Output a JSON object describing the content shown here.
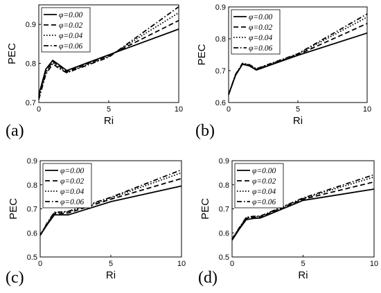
{
  "figure": {
    "panels": [
      "(a)",
      "(b)",
      "(c)",
      "(d)"
    ]
  },
  "chart_data": [
    {
      "type": "line",
      "panel_label": "(a)",
      "xlabel": "Ri",
      "ylabel": "PEC",
      "xlim": [
        0,
        10
      ],
      "ylim": [
        0.7,
        0.95
      ],
      "xticks": [
        0,
        5,
        10
      ],
      "yticks": [
        0.7,
        0.8,
        0.9
      ],
      "legend_position": "top-left",
      "series": [
        {
          "name": "φ=0.00",
          "style": "solid",
          "x": [
            0,
            0.5,
            1,
            1.5,
            2,
            5,
            10
          ],
          "y": [
            0.72,
            0.785,
            0.808,
            0.795,
            0.782,
            0.822,
            0.888
          ]
        },
        {
          "name": "φ=0.02",
          "style": "dashed",
          "x": [
            0,
            0.5,
            1,
            1.5,
            2,
            5,
            10
          ],
          "y": [
            0.715,
            0.78,
            0.805,
            0.792,
            0.779,
            0.82,
            0.91
          ]
        },
        {
          "name": "φ=0.04",
          "style": "dotted",
          "x": [
            0,
            0.5,
            1,
            1.5,
            2,
            5,
            10
          ],
          "y": [
            0.712,
            0.776,
            0.802,
            0.789,
            0.777,
            0.818,
            0.93
          ]
        },
        {
          "name": "φ=0.06",
          "style": "dashdot",
          "x": [
            0,
            0.5,
            1,
            1.5,
            2,
            5,
            10
          ],
          "y": [
            0.708,
            0.772,
            0.799,
            0.786,
            0.776,
            0.816,
            0.945
          ]
        }
      ]
    },
    {
      "type": "line",
      "panel_label": "(b)",
      "xlabel": "Ri",
      "ylabel": "PEC",
      "xlim": [
        0,
        10
      ],
      "ylim": [
        0.6,
        0.9
      ],
      "xticks": [
        0,
        5,
        10
      ],
      "yticks": [
        0.6,
        0.7,
        0.8,
        0.9
      ],
      "legend_position": "top-left",
      "series": [
        {
          "name": "φ=0.00",
          "style": "solid",
          "x": [
            0,
            0.5,
            1,
            1.5,
            2,
            5,
            10
          ],
          "y": [
            0.625,
            0.685,
            0.72,
            0.715,
            0.702,
            0.748,
            0.818
          ]
        },
        {
          "name": "φ=0.02",
          "style": "dashed",
          "x": [
            0,
            0.5,
            1,
            1.5,
            2,
            5,
            10
          ],
          "y": [
            0.625,
            0.686,
            0.721,
            0.717,
            0.704,
            0.75,
            0.848
          ]
        },
        {
          "name": "φ=0.04",
          "style": "dotted",
          "x": [
            0,
            0.5,
            1,
            1.5,
            2,
            5,
            10
          ],
          "y": [
            0.625,
            0.687,
            0.722,
            0.718,
            0.705,
            0.752,
            0.868
          ]
        },
        {
          "name": "φ=0.06",
          "style": "dashdot",
          "x": [
            0,
            0.5,
            1,
            1.5,
            2,
            5,
            10
          ],
          "y": [
            0.625,
            0.688,
            0.723,
            0.719,
            0.706,
            0.753,
            0.878
          ]
        }
      ]
    },
    {
      "type": "line",
      "panel_label": "(c)",
      "xlabel": "Ri",
      "ylabel": "PEC",
      "xlim": [
        0,
        10
      ],
      "ylim": [
        0.5,
        0.9
      ],
      "xticks": [
        0,
        5,
        10
      ],
      "yticks": [
        0.5,
        0.6,
        0.7,
        0.8,
        0.9
      ],
      "legend_position": "top-left",
      "series": [
        {
          "name": "φ=0.00",
          "style": "solid",
          "x": [
            0,
            0.5,
            1,
            1.5,
            2,
            5,
            10
          ],
          "y": [
            0.59,
            0.635,
            0.675,
            0.675,
            0.675,
            0.73,
            0.795
          ]
        },
        {
          "name": "φ=0.02",
          "style": "dashed",
          "x": [
            0,
            0.5,
            1,
            1.5,
            2,
            5,
            10
          ],
          "y": [
            0.59,
            0.638,
            0.68,
            0.68,
            0.683,
            0.74,
            0.826
          ]
        },
        {
          "name": "φ=0.04",
          "style": "dotted",
          "x": [
            0,
            0.5,
            1,
            1.5,
            2,
            5,
            10
          ],
          "y": [
            0.59,
            0.64,
            0.684,
            0.685,
            0.688,
            0.745,
            0.85
          ]
        },
        {
          "name": "φ=0.06",
          "style": "dashdot",
          "x": [
            0,
            0.5,
            1,
            1.5,
            2,
            5,
            10
          ],
          "y": [
            0.59,
            0.642,
            0.686,
            0.687,
            0.69,
            0.748,
            0.862
          ]
        }
      ]
    },
    {
      "type": "line",
      "panel_label": "(d)",
      "xlabel": "Ri",
      "ylabel": "PEC",
      "xlim": [
        0,
        10
      ],
      "ylim": [
        0.5,
        0.9
      ],
      "xticks": [
        0,
        5,
        10
      ],
      "yticks": [
        0.5,
        0.6,
        0.7,
        0.8,
        0.9
      ],
      "legend_position": "top-left",
      "series": [
        {
          "name": "φ=0.00",
          "style": "solid",
          "x": [
            0,
            0.5,
            1,
            1.5,
            2,
            5,
            10
          ],
          "y": [
            0.57,
            0.615,
            0.655,
            0.66,
            0.662,
            0.735,
            0.782
          ]
        },
        {
          "name": "φ=0.02",
          "style": "dashed",
          "x": [
            0,
            0.5,
            1,
            1.5,
            2,
            5,
            10
          ],
          "y": [
            0.572,
            0.618,
            0.66,
            0.664,
            0.666,
            0.74,
            0.812
          ]
        },
        {
          "name": "φ=0.04",
          "style": "dotted",
          "x": [
            0,
            0.5,
            1,
            1.5,
            2,
            5,
            10
          ],
          "y": [
            0.574,
            0.62,
            0.663,
            0.667,
            0.669,
            0.743,
            0.832
          ]
        },
        {
          "name": "φ=0.06",
          "style": "dashdot",
          "x": [
            0,
            0.5,
            1,
            1.5,
            2,
            5,
            10
          ],
          "y": [
            0.575,
            0.621,
            0.665,
            0.669,
            0.67,
            0.745,
            0.842
          ]
        }
      ]
    }
  ]
}
